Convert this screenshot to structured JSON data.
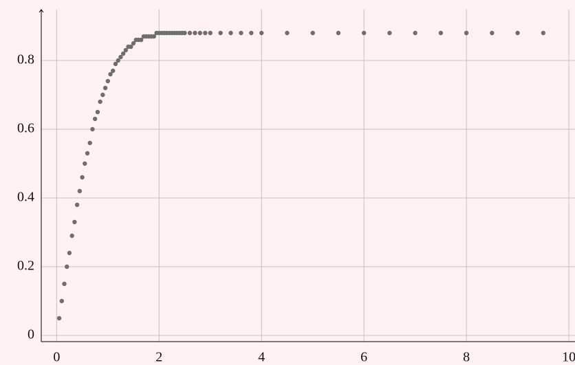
{
  "chart_data": {
    "type": "scatter",
    "x": [
      0.05,
      0.1,
      0.15,
      0.2,
      0.25,
      0.3,
      0.35,
      0.4,
      0.45,
      0.5,
      0.55,
      0.6,
      0.65,
      0.7,
      0.75,
      0.8,
      0.85,
      0.9,
      0.95,
      1.0,
      1.05,
      1.1,
      1.15,
      1.2,
      1.25,
      1.3,
      1.35,
      1.4,
      1.45,
      1.5,
      1.55,
      1.6,
      1.65,
      1.7,
      1.75,
      1.8,
      1.85,
      1.9,
      1.95,
      2.0,
      2.05,
      2.1,
      2.15,
      2.2,
      2.25,
      2.3,
      2.35,
      2.4,
      2.45,
      2.5,
      2.6,
      2.7,
      2.8,
      2.9,
      3.0,
      3.2,
      3.4,
      3.6,
      3.8,
      4.0,
      4.5,
      5.0,
      5.5,
      6.0,
      6.5,
      7.0,
      7.5,
      8.0,
      8.5,
      9.0,
      9.5
    ],
    "values": [
      0.05,
      0.1,
      0.15,
      0.2,
      0.24,
      0.29,
      0.33,
      0.38,
      0.42,
      0.46,
      0.5,
      0.53,
      0.56,
      0.6,
      0.63,
      0.65,
      0.68,
      0.7,
      0.72,
      0.74,
      0.76,
      0.77,
      0.79,
      0.8,
      0.81,
      0.82,
      0.83,
      0.84,
      0.84,
      0.85,
      0.86,
      0.86,
      0.86,
      0.87,
      0.87,
      0.87,
      0.87,
      0.87,
      0.88,
      0.88,
      0.88,
      0.88,
      0.88,
      0.88,
      0.88,
      0.88,
      0.88,
      0.88,
      0.88,
      0.88,
      0.88,
      0.88,
      0.88,
      0.88,
      0.88,
      0.88,
      0.88,
      0.88,
      0.88,
      0.88,
      0.88,
      0.88,
      0.88,
      0.88,
      0.88,
      0.88,
      0.88,
      0.88,
      0.88,
      0.88,
      0.88
    ],
    "color": "#6e6e6e",
    "xlim": [
      -0.3,
      10.12
    ],
    "ylim": [
      -0.018,
      0.948
    ],
    "xticks": [
      0,
      2,
      4,
      6,
      8,
      10
    ],
    "yticks": [
      0,
      0.2,
      0.4,
      0.6,
      0.8
    ],
    "grid": true
  }
}
